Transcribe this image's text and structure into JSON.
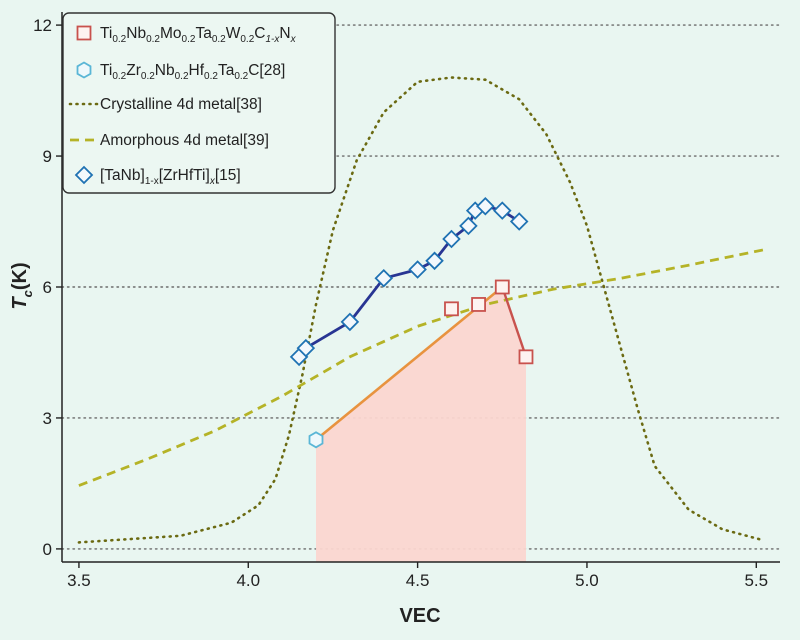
{
  "chart_data": {
    "type": "line",
    "xlabel": "VEC",
    "ylabel_main": "T",
    "ylabel_sub": "c",
    "ylabel_unit": "(K)",
    "xlim": [
      3.45,
      5.57
    ],
    "ylim": [
      -0.3,
      12.3
    ],
    "x_ticks": [
      3.5,
      4.0,
      4.5,
      5.0,
      5.5
    ],
    "x_tick_labels": [
      "3.5",
      "4.0",
      "4.5",
      "5.0",
      "5.5"
    ],
    "y_ticks": [
      0,
      3,
      6,
      9,
      12
    ],
    "y_tick_labels": [
      "0",
      "3",
      "6",
      "9",
      "12"
    ],
    "grid": "horizontal dotted",
    "legend_position": "top-left",
    "colors": {
      "background": "#e9f6f1",
      "carbonitride": "#c8524d",
      "carbonitride_line": "#e8933f",
      "carbonitride_fill": "#fbd6d0",
      "carbide": "#5ab6d6",
      "crystalline": "#6b6a12",
      "amorphous": "#b5b327",
      "tanb": "#1f72b3",
      "tanb_line": "#283593"
    },
    "legend": [
      {
        "id": "carbonitride",
        "marker": "square",
        "parts": [
          [
            "Ti",
            ""
          ],
          [
            "0.2",
            "sub"
          ],
          [
            "Nb",
            ""
          ],
          [
            "0.2",
            "sub"
          ],
          [
            "Mo",
            ""
          ],
          [
            "0.2",
            "sub"
          ],
          [
            "Ta",
            ""
          ],
          [
            "0.2",
            "sub"
          ],
          [
            "W",
            ""
          ],
          [
            "0.2",
            "sub"
          ],
          [
            "C",
            ""
          ],
          [
            "1-x",
            "subi"
          ],
          [
            "N",
            ""
          ],
          [
            "x",
            "subi"
          ]
        ]
      },
      {
        "id": "carbide",
        "marker": "hexagon",
        "parts": [
          [
            "Ti",
            ""
          ],
          [
            "0.2",
            "sub"
          ],
          [
            "Zr",
            ""
          ],
          [
            "0.2",
            "sub"
          ],
          [
            "Nb",
            ""
          ],
          [
            "0.2",
            "sub"
          ],
          [
            "Hf",
            ""
          ],
          [
            "0.2",
            "sub"
          ],
          [
            "Ta",
            ""
          ],
          [
            "0.2",
            "sub"
          ],
          [
            "C[28]",
            ""
          ]
        ]
      },
      {
        "id": "crystalline",
        "marker": "dotted-line",
        "parts": [
          [
            "Crystalline 4d metal[38]",
            ""
          ]
        ]
      },
      {
        "id": "amorphous",
        "marker": "dashed-line",
        "parts": [
          [
            "Amorphous 4d metal[39]",
            ""
          ]
        ]
      },
      {
        "id": "tanb",
        "marker": "diamond",
        "parts": [
          [
            "[TaNb]",
            ""
          ],
          [
            "1-x",
            "sub"
          ],
          [
            "[ZrHfTi]",
            ""
          ],
          [
            "x",
            "subi"
          ],
          [
            "[15]",
            ""
          ]
        ]
      }
    ],
    "series": [
      {
        "id": "carbonitride",
        "x": [
          4.6,
          4.68,
          4.75,
          4.82
        ],
        "y": [
          5.5,
          5.6,
          6.0,
          4.4
        ]
      },
      {
        "id": "carbide",
        "x": [
          4.2
        ],
        "y": [
          2.5
        ]
      },
      {
        "id": "tanb",
        "x": [
          4.15,
          4.17,
          4.3,
          4.4,
          4.5,
          4.55,
          4.6,
          4.65,
          4.67,
          4.7,
          4.75,
          4.8
        ],
        "y": [
          4.4,
          4.6,
          5.2,
          6.2,
          6.4,
          6.6,
          7.1,
          7.4,
          7.75,
          7.85,
          7.75,
          7.5
        ]
      },
      {
        "id": "crystalline",
        "x": [
          3.5,
          3.8,
          3.95,
          4.03,
          4.08,
          4.12,
          4.16,
          4.2,
          4.25,
          4.32,
          4.4,
          4.5,
          4.6,
          4.7,
          4.8,
          4.88,
          4.95,
          5.0,
          5.05,
          5.1,
          5.15,
          5.2,
          5.3,
          5.4,
          5.52
        ],
        "y": [
          0.15,
          0.3,
          0.6,
          1.0,
          1.6,
          2.6,
          4.0,
          5.6,
          7.3,
          8.9,
          10.0,
          10.7,
          10.8,
          10.75,
          10.3,
          9.5,
          8.4,
          7.4,
          6.0,
          4.6,
          3.2,
          1.9,
          0.9,
          0.45,
          0.2
        ]
      },
      {
        "id": "amorphous",
        "x": [
          3.5,
          3.7,
          3.9,
          4.1,
          4.3,
          4.5,
          4.7,
          4.9,
          5.1,
          5.3,
          5.52
        ],
        "y": [
          1.45,
          2.05,
          2.7,
          3.5,
          4.4,
          5.1,
          5.6,
          5.95,
          6.2,
          6.5,
          6.85
        ]
      }
    ],
    "shaded_region": {
      "x": [
        4.2,
        4.75,
        4.82
      ],
      "y": [
        2.5,
        6.0,
        4.4
      ],
      "baseline": -0.3
    },
    "connector_line": {
      "x": [
        4.2,
        4.75
      ],
      "y": [
        2.5,
        6.0
      ]
    }
  }
}
